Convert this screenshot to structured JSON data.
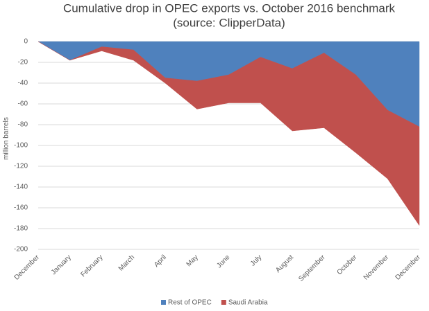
{
  "chart_data": {
    "type": "area",
    "stacked": true,
    "title": "Cumulative drop in OPEC exports vs. October 2016 benchmark",
    "subtitle": "(source: ClipperData)",
    "y_label": "million barrels",
    "categories": [
      "December",
      "January",
      "February",
      "March",
      "April",
      "May",
      "June",
      "July",
      "August",
      "September",
      "October",
      "November",
      "December"
    ],
    "series": [
      {
        "name": "Rest of OPEC",
        "color": "#4f81bd",
        "values": [
          0,
          -18,
          -5,
          -8,
          -35,
          -38,
          -32,
          -15,
          -26,
          -11,
          -32,
          -66,
          -82
        ]
      },
      {
        "name": "Saudi Arabia",
        "color": "#c0504d",
        "values": [
          0,
          0,
          -4,
          -10,
          -5,
          -27,
          -27,
          -44,
          -60,
          -72,
          -75,
          -66,
          -95
        ]
      }
    ],
    "ylim": [
      -200,
      0
    ],
    "yticks": [
      0,
      -20,
      -40,
      -60,
      -80,
      -100,
      -120,
      -140,
      -160,
      -180,
      -200
    ],
    "grid": true,
    "legend": "bottom"
  }
}
